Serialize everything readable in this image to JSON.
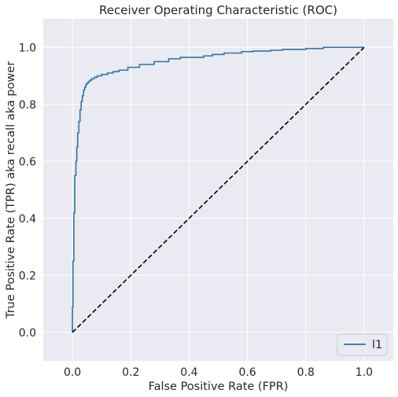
{
  "chart_data": {
    "type": "line",
    "title": "Receiver Operating Characteristic (ROC)",
    "xlabel": "False Positive Rate (FPR)",
    "ylabel": "True Positive Rate (TPR) aka recall aka power",
    "xlim": [
      -0.1,
      1.1
    ],
    "ylim": [
      -0.1,
      1.1
    ],
    "xticks": [
      0.0,
      0.2,
      0.4,
      0.6,
      0.8,
      1.0
    ],
    "yticks": [
      0.0,
      0.2,
      0.4,
      0.6,
      0.8,
      1.0
    ],
    "xtick_labels": [
      "0.0",
      "0.2",
      "0.4",
      "0.6",
      "0.8",
      "1.0"
    ],
    "ytick_labels": [
      "0.0",
      "0.2",
      "0.4",
      "0.6",
      "0.8",
      "1.0"
    ],
    "grid": true,
    "legend_position": "lower-right",
    "series": [
      {
        "name": "l1",
        "color": "#3274a1",
        "style": "solid",
        "x": [
          0.0,
          0.0,
          0.002,
          0.002,
          0.005,
          0.005,
          0.008,
          0.008,
          0.012,
          0.012,
          0.015,
          0.015,
          0.018,
          0.018,
          0.022,
          0.022,
          0.026,
          0.026,
          0.03,
          0.03,
          0.034,
          0.034,
          0.038,
          0.038,
          0.042,
          0.042,
          0.046,
          0.046,
          0.05,
          0.05,
          0.055,
          0.055,
          0.06,
          0.06,
          0.066,
          0.066,
          0.075,
          0.075,
          0.085,
          0.085,
          0.1,
          0.1,
          0.12,
          0.12,
          0.14,
          0.14,
          0.16,
          0.16,
          0.19,
          0.19,
          0.23,
          0.23,
          0.28,
          0.28,
          0.33,
          0.33,
          0.37,
          0.37,
          0.45,
          0.45,
          0.48,
          0.48,
          0.52,
          0.52,
          0.58,
          0.58,
          0.62,
          0.62,
          0.68,
          0.68,
          0.72,
          0.72,
          0.8,
          0.8,
          0.86,
          0.86,
          0.95,
          1.0
        ],
        "y": [
          0.0,
          0.09,
          0.09,
          0.25,
          0.25,
          0.42,
          0.42,
          0.55,
          0.55,
          0.6,
          0.6,
          0.65,
          0.65,
          0.7,
          0.7,
          0.74,
          0.74,
          0.78,
          0.78,
          0.81,
          0.81,
          0.83,
          0.83,
          0.85,
          0.85,
          0.86,
          0.86,
          0.87,
          0.87,
          0.875,
          0.875,
          0.88,
          0.88,
          0.885,
          0.885,
          0.89,
          0.89,
          0.895,
          0.895,
          0.9,
          0.9,
          0.905,
          0.905,
          0.91,
          0.91,
          0.915,
          0.915,
          0.92,
          0.92,
          0.93,
          0.93,
          0.94,
          0.94,
          0.95,
          0.95,
          0.96,
          0.96,
          0.965,
          0.965,
          0.97,
          0.97,
          0.975,
          0.975,
          0.98,
          0.98,
          0.985,
          0.985,
          0.987,
          0.987,
          0.99,
          0.99,
          0.993,
          0.993,
          0.996,
          0.996,
          1.0,
          1.0,
          1.0
        ]
      },
      {
        "name": "",
        "color": "#000000",
        "style": "dashed",
        "x": [
          0.0,
          1.0
        ],
        "y": [
          0.0,
          1.0
        ]
      }
    ]
  },
  "colors": {
    "plot_background": "#eaeaf2",
    "grid": "#ffffff",
    "text": "#262626",
    "legend_border": "#cccccc"
  }
}
